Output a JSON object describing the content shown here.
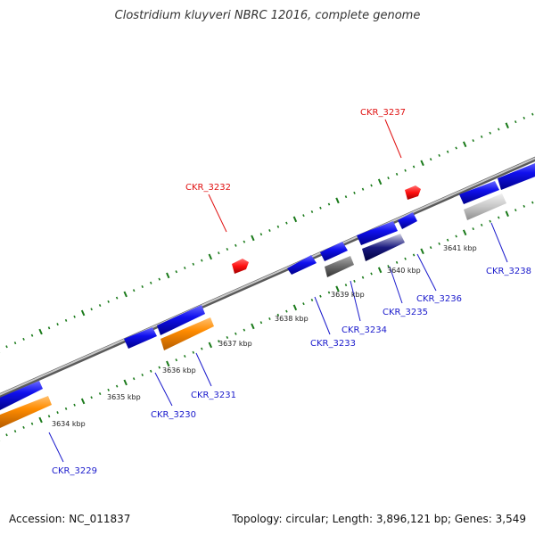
{
  "title": "Clostridium kluyveri NBRC 12016, complete genome",
  "footer": {
    "accession": "Accession: NC_011837",
    "topology": "Topology: circular; Length: 3,896,121 bp; Genes: 3,549"
  },
  "colors": {
    "blue_gene": "#1010dd",
    "orange_gene": "#ff8c00",
    "red_feature": "#ff1010",
    "gray_gene": "#777777",
    "light_gray_gene": "#c8c8c8",
    "tick_green": "#1a7a1a",
    "blue_label": "#1a1acc",
    "red_label": "#e01010"
  },
  "scale_labels": [
    "3634 kbp",
    "3635 kbp",
    "3636 kbp",
    "3637 kbp",
    "3638 kbp",
    "3639 kbp",
    "3640 kbp",
    "3641 kbp"
  ],
  "gene_labels": [
    "CKR_3229",
    "CKR_3230",
    "CKR_3231",
    "CKR_3233",
    "CKR_3234",
    "CKR_3235",
    "CKR_3236",
    "CKR_3238"
  ],
  "red_labels": [
    "CKR_3232",
    "CKR_3237"
  ]
}
